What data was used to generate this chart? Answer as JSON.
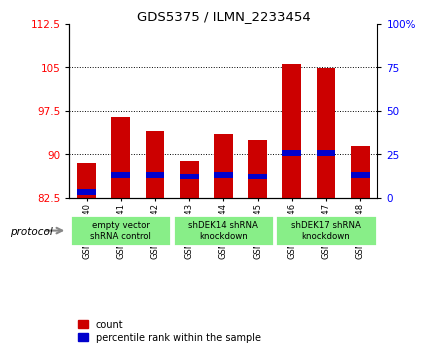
{
  "title": "GDS5375 / ILMN_2233454",
  "samples": [
    "GSM1486440",
    "GSM1486441",
    "GSM1486442",
    "GSM1486443",
    "GSM1486444",
    "GSM1486445",
    "GSM1486446",
    "GSM1486447",
    "GSM1486448"
  ],
  "count_values": [
    88.5,
    96.5,
    94.0,
    88.8,
    93.5,
    92.5,
    105.5,
    104.8,
    91.5
  ],
  "percentile_values": [
    83.5,
    86.5,
    86.5,
    86.2,
    86.5,
    86.2,
    90.2,
    90.2,
    86.5
  ],
  "bar_bottom": 82.5,
  "ylim_left": [
    82.5,
    112.5
  ],
  "ylim_right": [
    0,
    100
  ],
  "yticks_left": [
    82.5,
    90.0,
    97.5,
    105.0,
    112.5
  ],
  "yticks_right": [
    0,
    25,
    50,
    75,
    100
  ],
  "ytick_labels_left": [
    "82.5",
    "90",
    "97.5",
    "105",
    "112.5"
  ],
  "ytick_labels_right": [
    "0",
    "25",
    "50",
    "75",
    "100%"
  ],
  "groups": [
    {
      "label": "empty vector\nshRNA control",
      "start": 0,
      "end": 3
    },
    {
      "label": "shDEK14 shRNA\nknockdown",
      "start": 3,
      "end": 6
    },
    {
      "label": "shDEK17 shRNA\nknockdown",
      "start": 6,
      "end": 9
    }
  ],
  "bar_color": "#cc0000",
  "percentile_color": "#0000cc",
  "group_color": "#88ee88",
  "bar_width": 0.55,
  "blue_bar_height": 1.0,
  "protocol_label": "protocol",
  "legend_count_label": "count",
  "legend_percentile_label": "percentile rank within the sample"
}
